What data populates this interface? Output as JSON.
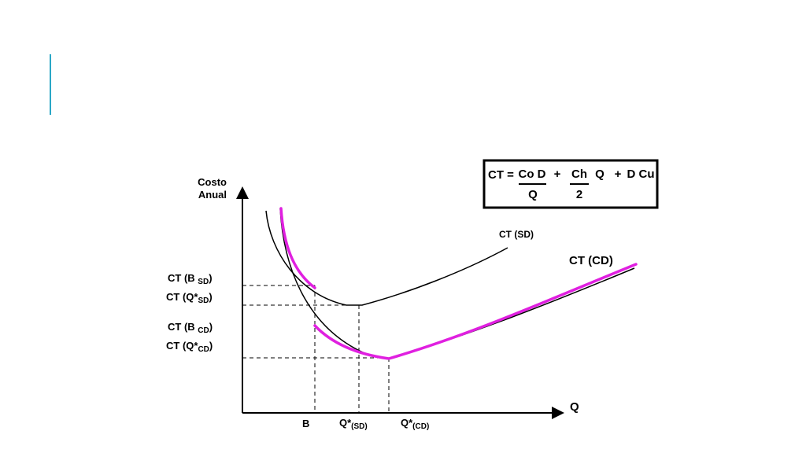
{
  "colors": {
    "accent_bar": "#2aa7c6",
    "curve_sd": "#000000",
    "curve_cd": "#000000",
    "highlight": "#e020e0",
    "axis": "#000000",
    "guide": "#000000"
  },
  "diagram": {
    "y_axis_title_line1": "Costo",
    "y_axis_title_line2": "Anual",
    "x_axis_title": "Q",
    "curve_sd_label": "CT (SD)",
    "curve_cd_label": "CT (CD)",
    "y_labels": {
      "ct_b_sd": {
        "main": "CT (B ",
        "sub": "SD",
        "close": ")"
      },
      "ct_q_sd": {
        "main": "CT (Q*",
        "sub": "SD",
        "close": ")"
      },
      "ct_b_cd": {
        "main": "CT (B ",
        "sub": "CD",
        "close": ")"
      },
      "ct_q_cd": {
        "main": "CT (Q*",
        "sub": "CD",
        "close": ")"
      }
    },
    "x_labels": {
      "b": {
        "main": "B",
        "sub": ""
      },
      "q_sd": {
        "main": "Q*",
        "sub": "(SD)"
      },
      "q_cd": {
        "main": "Q*",
        "sub": "(CD)"
      }
    }
  },
  "formula": {
    "lhs": "CT =",
    "term1_num": "Co D",
    "term1_den": "Q",
    "plus1": "+",
    "term2_num": "Ch",
    "term2_den": "2",
    "term2_q": "Q",
    "plus2": "+",
    "term3": "D Cu"
  }
}
